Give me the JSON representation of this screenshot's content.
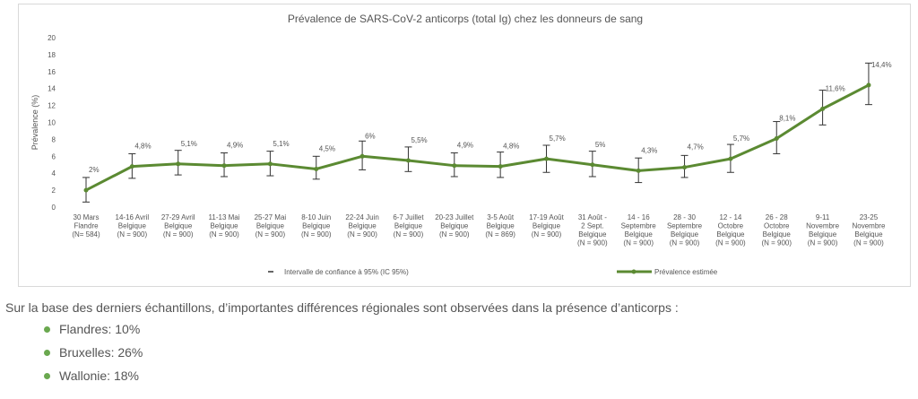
{
  "chart_data": {
    "type": "line",
    "title": "Prévalence de SARS-CoV-2 anticorps (total Ig) chez les donneurs de sang",
    "ylabel": "Prévalence (%)",
    "xlabel": "",
    "ylim": [
      0,
      20
    ],
    "yticks": [
      "0",
      "2",
      "4",
      "6",
      "8",
      "10",
      "12",
      "14",
      "16",
      "18",
      "20"
    ],
    "grid": false,
    "legend_position": "bottom",
    "categories": [
      [
        "30 Mars",
        "Flandre",
        "(N= 584)"
      ],
      [
        "14-16 Avril",
        "Belgique",
        "(N = 900)"
      ],
      [
        "27-29 Avril",
        "Belgique",
        "(N = 900)"
      ],
      [
        "11-13 Mai",
        "Belgique",
        "(N = 900)"
      ],
      [
        "25-27 Mai",
        "Belgique",
        "(N = 900)"
      ],
      [
        "8-10 Juin",
        "Belgique",
        "(N = 900)"
      ],
      [
        "22-24 Juin",
        "Belgique",
        "(N = 900)"
      ],
      [
        "6-7 Juillet",
        "Belgique",
        "(N = 900)"
      ],
      [
        "20-23 Juillet",
        "Belgique",
        "(N = 900)"
      ],
      [
        "3-5 Août",
        "Belgique",
        "(N = 869)"
      ],
      [
        "17-19 Août",
        "Belgique",
        "(N = 900)"
      ],
      [
        "31 Août -",
        "2 Sept.",
        "Belgique",
        "(N = 900)"
      ],
      [
        "14 - 16",
        "Septembre",
        "Belgique",
        "(N = 900)"
      ],
      [
        "28 - 30",
        "Septembre",
        "Belgique",
        "(N = 900)"
      ],
      [
        "12 - 14",
        "Octobre",
        "Belgique",
        "(N = 900)"
      ],
      [
        "26 - 28",
        "Octobre",
        "Belgique",
        "(N = 900)"
      ],
      [
        "9-11",
        "Novembre",
        "Belgique",
        "(N = 900)"
      ],
      [
        "23-25",
        "Novembre",
        "Belgique",
        "(N = 900)"
      ]
    ],
    "series": [
      {
        "name": "Prévalence estimée",
        "color": "#5b8a32",
        "values": [
          2.0,
          4.8,
          5.1,
          4.9,
          5.1,
          4.5,
          6.0,
          5.5,
          4.9,
          4.8,
          5.7,
          5.0,
          4.3,
          4.7,
          5.7,
          8.1,
          11.6,
          14.4
        ],
        "data_labels": [
          "2%",
          "4,8%",
          "5,1%",
          "4,9%",
          "5,1%",
          "4,5%",
          "6%",
          "5,5%",
          "4,9%",
          "4,8%",
          "5,7%",
          "5%",
          "4,3%",
          "4,7%",
          "5,7%",
          "8,1%",
          "11,6%",
          "14,4%"
        ],
        "ci_low": [
          0.6,
          3.4,
          3.8,
          3.6,
          3.7,
          3.3,
          4.4,
          4.2,
          3.6,
          3.5,
          4.1,
          3.6,
          2.9,
          3.5,
          4.1,
          6.3,
          9.7,
          12.1
        ],
        "ci_high": [
          3.5,
          6.3,
          6.7,
          6.4,
          6.6,
          6.0,
          7.8,
          7.1,
          6.4,
          6.5,
          7.3,
          6.6,
          5.8,
          6.1,
          7.4,
          10.1,
          13.8,
          17.0
        ]
      }
    ],
    "legend": {
      "ci_label": "Intervalle de confiance à 95% (IC 95%)",
      "series_label": "Prévalence estimée"
    },
    "colors": {
      "line": "#5b8a32",
      "error_bar": "#333333",
      "text": "#555555"
    }
  },
  "note": "Sur la base des derniers échantillons, d’importantes différences régionales sont observées dans la présence d’anticorps :",
  "regions": [
    {
      "label": "Flandres: 10%"
    },
    {
      "label": "Bruxelles: 26%"
    },
    {
      "label": "Wallonie: 18%"
    }
  ],
  "bullet_color": "#6aa84f"
}
